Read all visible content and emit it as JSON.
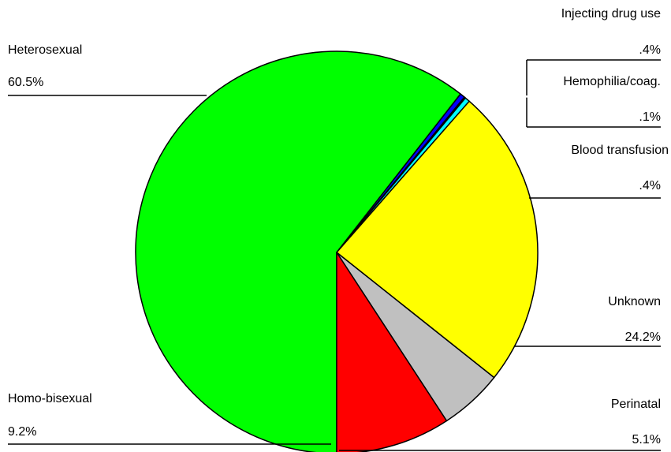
{
  "chart_data": {
    "type": "pie",
    "title": "",
    "slices": [
      {
        "label": "Heterosexual",
        "value": 60.5,
        "value_label": "60.5%",
        "color": "#00ff00"
      },
      {
        "label": "Injecting drug use",
        "value": 0.4,
        "value_label": ".4%",
        "color": "#0000ff"
      },
      {
        "label": "Hemophilia/coag.",
        "value": 0.1,
        "value_label": ".1%",
        "color": "#000080"
      },
      {
        "label": "Blood transfusion",
        "value": 0.4,
        "value_label": ".4%",
        "color": "#00ffff"
      },
      {
        "label": "Unknown",
        "value": 24.2,
        "value_label": "24.2%",
        "color": "#ffff00"
      },
      {
        "label": "Perinatal",
        "value": 5.1,
        "value_label": "5.1%",
        "color": "#c0c0c0"
      },
      {
        "label": "Homo-bisexual",
        "value": 9.2,
        "value_label": "9.2%",
        "color": "#ff0000"
      }
    ],
    "start_angle_deg": 180,
    "direction": "clockwise",
    "labels_outside_with_leader_lines": true
  }
}
